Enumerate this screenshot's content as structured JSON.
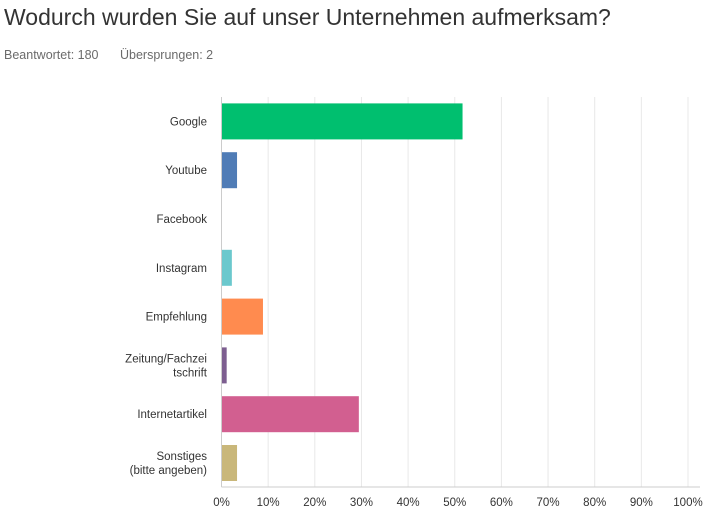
{
  "header": {
    "title": "Wodurch wurden Sie auf unser Unternehmen aufmerksam?",
    "answered": "Beantwortet: 180",
    "skipped": "Übersprungen: 2"
  },
  "chart_data": {
    "type": "bar",
    "orientation": "horizontal",
    "categories": [
      [
        "Google"
      ],
      [
        "Youtube"
      ],
      [
        "Facebook"
      ],
      [
        "Instagram"
      ],
      [
        "Empfehlung"
      ],
      [
        "Zeitung/Fachzei",
        "tschrift"
      ],
      [
        "Internetartikel"
      ],
      [
        "Sonstiges",
        "(bitte angeben)"
      ]
    ],
    "values": [
      51.67,
      3.33,
      0,
      2.22,
      8.89,
      1.11,
      29.44,
      3.33
    ],
    "colors": [
      "#00bf6f",
      "#507cb6",
      "#6bc8cd",
      "#6bc8cd",
      "#ff8b4f",
      "#7d5e90",
      "#d25f90",
      "#c9b77a"
    ],
    "xlim": [
      0,
      100
    ],
    "xticks": [
      "0%",
      "10%",
      "20%",
      "30%",
      "40%",
      "50%",
      "60%",
      "70%",
      "80%",
      "90%",
      "100%"
    ],
    "grid": true
  }
}
